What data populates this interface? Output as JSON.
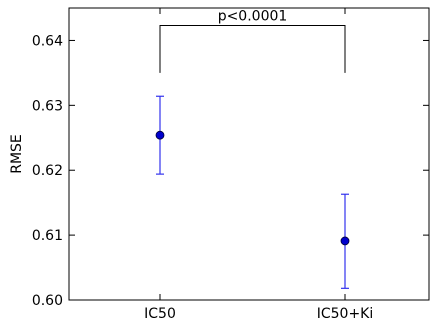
{
  "chart_data": {
    "type": "scatter",
    "categories": [
      "IC50",
      "IC50+Ki"
    ],
    "series": [
      {
        "values": [
          0.6254,
          0.6091
        ],
        "error_low": [
          0.6194,
          0.6018
        ],
        "error_high": [
          0.6314,
          0.6163
        ],
        "color": "#0000cc",
        "errorbar_color": "#3333ee"
      }
    ],
    "ylabel": "RMSE",
    "xlabel": "",
    "ylim": [
      0.6,
      0.645
    ],
    "yticks": [
      0.6,
      0.61,
      0.62,
      0.63,
      0.64
    ],
    "ytick_labels": [
      "0.60",
      "0.61",
      "0.62",
      "0.63",
      "0.64"
    ],
    "grid": false,
    "annotation": {
      "text": "p<0.0001",
      "bracket_top": 0.6423,
      "bracket_bottom": 0.635
    }
  }
}
